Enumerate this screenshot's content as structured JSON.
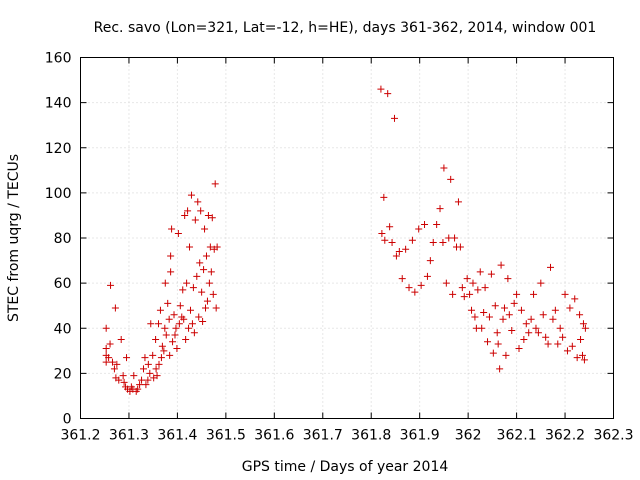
{
  "chart_data": {
    "type": "scatter",
    "title": "Rec. savo (Lon=321, Lat=-12, h=HE), days 361-362, 2014, window 001",
    "xlabel": "GPS time / Days of year 2014",
    "ylabel": "STEC from uqrg / TECUs",
    "xlim": [
      361.2,
      362.3
    ],
    "ylim": [
      0,
      160
    ],
    "xticks": [
      361.2,
      361.3,
      361.4,
      361.5,
      361.6,
      361.7,
      361.8,
      361.9,
      362.0,
      362.1,
      362.2,
      362.3
    ],
    "xtick_labels": [
      "361.2",
      "361.3",
      "361.4",
      "361.5",
      "361.6",
      "361.7",
      "361.8",
      "361.9",
      "362",
      "362.1",
      "362.2",
      "362.3"
    ],
    "yticks": [
      0,
      20,
      40,
      60,
      80,
      100,
      120,
      140,
      160
    ],
    "ytick_labels": [
      "0",
      "20",
      "40",
      "60",
      "80",
      "100",
      "120",
      "140",
      "160"
    ],
    "grid": true,
    "legend": "none",
    "marker": "plus",
    "color": "#cc0000",
    "series": [
      {
        "points": [
          [
            361.253,
            40
          ],
          [
            361.253,
            31
          ],
          [
            361.253,
            28
          ],
          [
            361.253,
            25
          ],
          [
            361.258,
            27
          ],
          [
            361.261,
            33
          ],
          [
            361.262,
            59
          ],
          [
            361.266,
            25
          ],
          [
            361.27,
            22
          ],
          [
            361.272,
            49
          ],
          [
            361.273,
            18
          ],
          [
            361.275,
            24
          ],
          [
            361.279,
            17
          ],
          [
            361.284,
            35
          ],
          [
            361.288,
            19
          ],
          [
            361.29,
            16
          ],
          [
            361.293,
            14
          ],
          [
            361.295,
            27
          ],
          [
            361.297,
            13
          ],
          [
            361.302,
            12
          ],
          [
            361.305,
            14
          ],
          [
            361.308,
            13
          ],
          [
            361.31,
            19
          ],
          [
            361.315,
            12
          ],
          [
            361.318,
            13
          ],
          [
            361.322,
            15
          ],
          [
            361.326,
            17
          ],
          [
            361.33,
            22
          ],
          [
            361.333,
            27
          ],
          [
            361.335,
            15
          ],
          [
            361.339,
            17
          ],
          [
            361.34,
            24
          ],
          [
            361.343,
            20
          ],
          [
            361.345,
            42
          ],
          [
            361.349,
            28
          ],
          [
            361.351,
            18
          ],
          [
            361.355,
            35
          ],
          [
            361.356,
            22
          ],
          [
            361.358,
            19
          ],
          [
            361.361,
            42
          ],
          [
            361.362,
            24
          ],
          [
            361.365,
            48
          ],
          [
            361.367,
            27
          ],
          [
            361.369,
            32
          ],
          [
            361.372,
            30
          ],
          [
            361.374,
            40
          ],
          [
            361.375,
            60
          ],
          [
            361.377,
            37
          ],
          [
            361.38,
            51
          ],
          [
            361.383,
            44
          ],
          [
            361.384,
            28
          ],
          [
            361.386,
            72
          ],
          [
            361.386,
            65
          ],
          [
            361.388,
            84
          ],
          [
            361.39,
            34
          ],
          [
            361.393,
            46
          ],
          [
            361.395,
            37
          ],
          [
            361.397,
            40
          ],
          [
            361.399,
            31
          ],
          [
            361.402,
            82
          ],
          [
            361.404,
            42
          ],
          [
            361.406,
            50
          ],
          [
            361.409,
            45
          ],
          [
            361.411,
            57
          ],
          [
            361.413,
            44
          ],
          [
            361.415,
            90
          ],
          [
            361.417,
            35
          ],
          [
            361.419,
            60
          ],
          [
            361.421,
            92
          ],
          [
            361.423,
            40
          ],
          [
            361.425,
            76
          ],
          [
            361.427,
            48
          ],
          [
            361.429,
            99
          ],
          [
            361.431,
            42
          ],
          [
            361.433,
            58
          ],
          [
            361.435,
            38
          ],
          [
            361.437,
            88
          ],
          [
            361.44,
            63
          ],
          [
            361.442,
            96
          ],
          [
            361.444,
            45
          ],
          [
            361.446,
            69
          ],
          [
            361.448,
            92
          ],
          [
            361.45,
            56
          ],
          [
            361.452,
            43
          ],
          [
            361.454,
            66
          ],
          [
            361.456,
            84
          ],
          [
            361.458,
            49
          ],
          [
            361.46,
            72
          ],
          [
            361.462,
            52
          ],
          [
            361.464,
            90
          ],
          [
            361.466,
            60
          ],
          [
            361.468,
            76
          ],
          [
            361.47,
            65
          ],
          [
            361.472,
            89
          ],
          [
            361.474,
            55
          ],
          [
            361.476,
            75
          ],
          [
            361.478,
            104
          ],
          [
            361.48,
            49
          ],
          [
            361.482,
            76
          ],
          [
            361.82,
            146
          ],
          [
            361.826,
            98
          ],
          [
            361.822,
            82
          ],
          [
            361.828,
            79
          ],
          [
            361.834,
            144
          ],
          [
            361.838,
            85
          ],
          [
            361.843,
            78
          ],
          [
            361.848,
            133
          ],
          [
            361.852,
            72
          ],
          [
            361.858,
            74
          ],
          [
            361.864,
            62
          ],
          [
            361.871,
            75
          ],
          [
            361.878,
            58
          ],
          [
            361.885,
            79
          ],
          [
            361.89,
            56
          ],
          [
            361.898,
            84
          ],
          [
            361.903,
            59
          ],
          [
            361.91,
            86
          ],
          [
            361.916,
            63
          ],
          [
            361.922,
            70
          ],
          [
            361.928,
            78
          ],
          [
            361.935,
            86
          ],
          [
            361.942,
            93
          ],
          [
            361.948,
            78
          ],
          [
            361.95,
            111
          ],
          [
            361.955,
            60
          ],
          [
            361.96,
            80
          ],
          [
            361.964,
            106
          ],
          [
            361.968,
            55
          ],
          [
            361.972,
            80
          ],
          [
            361.976,
            76
          ],
          [
            361.98,
            96
          ],
          [
            361.984,
            76
          ],
          [
            361.988,
            58
          ],
          [
            361.992,
            54
          ],
          [
            361.998,
            62
          ],
          [
            362.003,
            55
          ],
          [
            362.007,
            48
          ],
          [
            362.01,
            60
          ],
          [
            362.014,
            45
          ],
          [
            362.017,
            40
          ],
          [
            362.02,
            57
          ],
          [
            362.025,
            65
          ],
          [
            362.028,
            40
          ],
          [
            362.032,
            47
          ],
          [
            362.035,
            58
          ],
          [
            362.04,
            34
          ],
          [
            362.044,
            45
          ],
          [
            362.048,
            64
          ],
          [
            362.052,
            29
          ],
          [
            362.056,
            50
          ],
          [
            362.06,
            38
          ],
          [
            362.062,
            33
          ],
          [
            362.065,
            22
          ],
          [
            362.068,
            68
          ],
          [
            362.072,
            44
          ],
          [
            362.075,
            49
          ],
          [
            362.078,
            28
          ],
          [
            362.082,
            62
          ],
          [
            362.085,
            46
          ],
          [
            362.09,
            39
          ],
          [
            362.095,
            51
          ],
          [
            362.1,
            55
          ],
          [
            362.105,
            31
          ],
          [
            362.11,
            48
          ],
          [
            362.115,
            35
          ],
          [
            362.12,
            42
          ],
          [
            362.125,
            38
          ],
          [
            362.13,
            44
          ],
          [
            362.135,
            55
          ],
          [
            362.14,
            40
          ],
          [
            362.145,
            38
          ],
          [
            362.15,
            60
          ],
          [
            362.155,
            46
          ],
          [
            362.16,
            36
          ],
          [
            362.165,
            33
          ],
          [
            362.17,
            67
          ],
          [
            362.175,
            44
          ],
          [
            362.18,
            48
          ],
          [
            362.185,
            33
          ],
          [
            362.19,
            40
          ],
          [
            362.195,
            36
          ],
          [
            362.2,
            55
          ],
          [
            362.205,
            30
          ],
          [
            362.21,
            49
          ],
          [
            362.215,
            32
          ],
          [
            362.22,
            53
          ],
          [
            362.225,
            27
          ],
          [
            362.23,
            46
          ],
          [
            362.232,
            35
          ],
          [
            362.236,
            28
          ],
          [
            362.238,
            42
          ],
          [
            362.24,
            26
          ],
          [
            362.242,
            40
          ]
        ]
      }
    ]
  }
}
